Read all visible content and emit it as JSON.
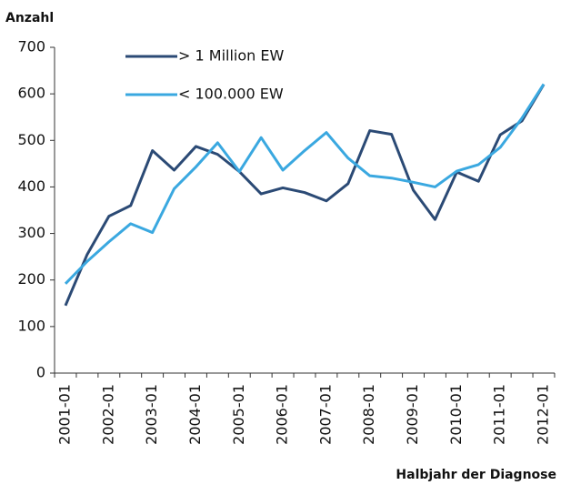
{
  "chart_data": {
    "type": "line",
    "y_label": "Anzahl",
    "x_label": "Halbjahr der Diagnose",
    "categories": [
      "2001-01",
      null,
      "2002-01",
      null,
      "2003-01",
      null,
      "2004-01",
      null,
      "2005-01",
      null,
      "2006-01",
      null,
      "2007-01",
      null,
      "2008-01",
      null,
      "2009-01",
      null,
      "2010-01",
      null,
      "2011-01",
      null,
      "2012-01"
    ],
    "series": [
      {
        "name": "> 1 Million EW",
        "color": "#2b4a75",
        "values": [
          145,
          255,
          337,
          360,
          478,
          436,
          487,
          470,
          433,
          385,
          398,
          388,
          370,
          407,
          521,
          513,
          393,
          330,
          432,
          412,
          512,
          542,
          620
        ]
      },
      {
        "name": "< 100.000 EW",
        "color": "#3aa8e0",
        "values": [
          192,
          240,
          282,
          321,
          302,
          396,
          443,
          495,
          433,
          506,
          436,
          478,
          517,
          462,
          424,
          419,
          410,
          400,
          434,
          448,
          485,
          548,
          621
        ]
      }
    ],
    "ylim": [
      0,
      700
    ],
    "yticks": [
      0,
      100,
      200,
      300,
      400,
      500,
      600,
      700
    ],
    "grid": false,
    "legend": "top-left"
  }
}
